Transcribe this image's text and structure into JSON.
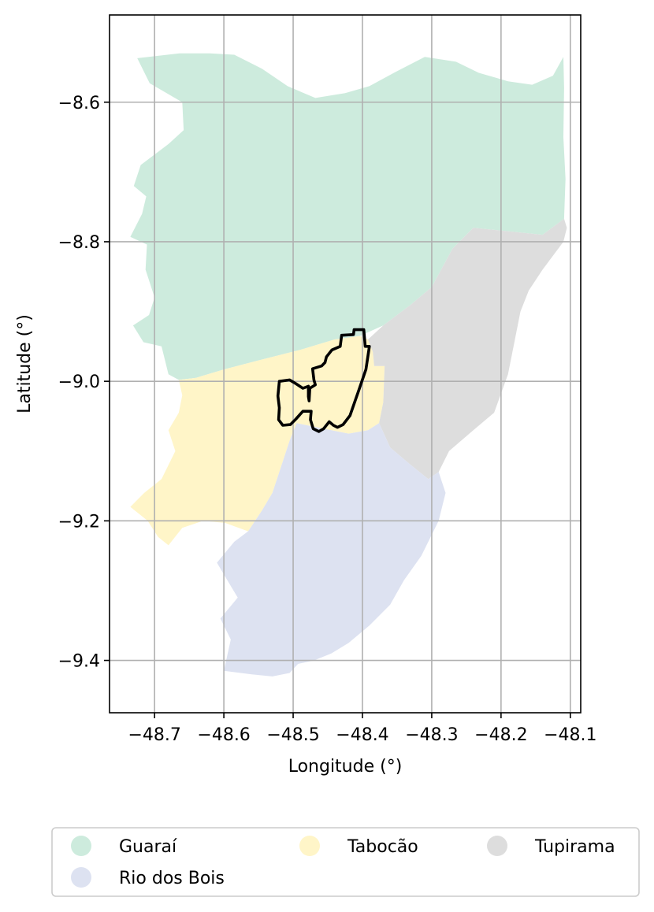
{
  "chart_data": {
    "type": "map",
    "xlabel": "Longitude (°)",
    "ylabel": "Latitude (°)",
    "xlim": [
      -48.765,
      -48.085
    ],
    "ylim": [
      -9.475,
      -8.475
    ],
    "xticks": [
      -48.7,
      -48.6,
      -48.5,
      -48.4,
      -48.3,
      -48.2,
      -48.1
    ],
    "xtick_labels": [
      "−48.7",
      "−48.6",
      "−48.5",
      "−48.4",
      "−48.3",
      "−48.2",
      "−48.1"
    ],
    "yticks": [
      -8.6,
      -8.8,
      -9.0,
      -9.2,
      -9.4
    ],
    "ytick_labels": [
      "−8.6",
      "−8.8",
      "−9.0",
      "−9.2",
      "−9.4"
    ],
    "grid": true,
    "legend_position": "bottom",
    "legend_columns": 3,
    "regions": [
      {
        "name": "Guaraí",
        "color": "#cdebdd",
        "polygon": [
          [
            -48.725,
            -8.537
          ],
          [
            -48.664,
            -8.53
          ],
          [
            -48.62,
            -8.53
          ],
          [
            -48.585,
            -8.532
          ],
          [
            -48.545,
            -8.552
          ],
          [
            -48.508,
            -8.577
          ],
          [
            -48.468,
            -8.594
          ],
          [
            -48.425,
            -8.587
          ],
          [
            -48.39,
            -8.577
          ],
          [
            -48.353,
            -8.557
          ],
          [
            -48.31,
            -8.535
          ],
          [
            -48.265,
            -8.542
          ],
          [
            -48.232,
            -8.558
          ],
          [
            -48.19,
            -8.57
          ],
          [
            -48.155,
            -8.575
          ],
          [
            -48.125,
            -8.562
          ],
          [
            -48.11,
            -8.535
          ],
          [
            -48.109,
            -8.58
          ],
          [
            -48.11,
            -8.65
          ],
          [
            -48.107,
            -8.71
          ],
          [
            -48.109,
            -8.767
          ],
          [
            -48.14,
            -8.79
          ],
          [
            -48.2,
            -8.784
          ],
          [
            -48.24,
            -8.78
          ],
          [
            -48.27,
            -8.81
          ],
          [
            -48.3,
            -8.865
          ],
          [
            -48.33,
            -8.89
          ],
          [
            -48.37,
            -8.92
          ],
          [
            -48.404,
            -8.935
          ],
          [
            -48.44,
            -8.94
          ],
          [
            -48.49,
            -8.955
          ],
          [
            -48.55,
            -8.97
          ],
          [
            -48.6,
            -8.983
          ],
          [
            -48.64,
            -8.995
          ],
          [
            -48.665,
            -8.998
          ],
          [
            -48.68,
            -8.99
          ],
          [
            -48.69,
            -8.95
          ],
          [
            -48.716,
            -8.944
          ],
          [
            -48.731,
            -8.92
          ],
          [
            -48.708,
            -8.905
          ],
          [
            -48.7,
            -8.88
          ],
          [
            -48.713,
            -8.84
          ],
          [
            -48.711,
            -8.804
          ],
          [
            -48.735,
            -8.793
          ],
          [
            -48.718,
            -8.76
          ],
          [
            -48.712,
            -8.735
          ],
          [
            -48.73,
            -8.72
          ],
          [
            -48.72,
            -8.69
          ],
          [
            -48.68,
            -8.66
          ],
          [
            -48.658,
            -8.64
          ],
          [
            -48.66,
            -8.6
          ],
          [
            -48.707,
            -8.573
          ],
          [
            -48.725,
            -8.537
          ]
        ]
      },
      {
        "name": "Tabocão",
        "color": "#fff5c8",
        "polygon": [
          [
            -48.665,
            -8.998
          ],
          [
            -48.64,
            -8.995
          ],
          [
            -48.6,
            -8.983
          ],
          [
            -48.55,
            -8.97
          ],
          [
            -48.49,
            -8.955
          ],
          [
            -48.44,
            -8.94
          ],
          [
            -48.404,
            -8.935
          ],
          [
            -48.392,
            -8.94
          ],
          [
            -48.385,
            -8.958
          ],
          [
            -48.383,
            -8.978
          ],
          [
            -48.368,
            -8.978
          ],
          [
            -48.37,
            -9.03
          ],
          [
            -48.376,
            -9.06
          ],
          [
            -48.392,
            -9.07
          ],
          [
            -48.42,
            -9.075
          ],
          [
            -48.445,
            -9.07
          ],
          [
            -48.47,
            -9.065
          ],
          [
            -48.495,
            -9.06
          ],
          [
            -48.505,
            -9.085
          ],
          [
            -48.52,
            -9.13
          ],
          [
            -48.53,
            -9.16
          ],
          [
            -48.545,
            -9.185
          ],
          [
            -48.565,
            -9.215
          ],
          [
            -48.598,
            -9.203
          ],
          [
            -48.63,
            -9.2
          ],
          [
            -48.66,
            -9.21
          ],
          [
            -48.68,
            -9.235
          ],
          [
            -48.695,
            -9.223
          ],
          [
            -48.71,
            -9.2
          ],
          [
            -48.735,
            -9.18
          ],
          [
            -48.715,
            -9.16
          ],
          [
            -48.69,
            -9.14
          ],
          [
            -48.67,
            -9.1
          ],
          [
            -48.68,
            -9.07
          ],
          [
            -48.665,
            -9.045
          ],
          [
            -48.66,
            -9.02
          ],
          [
            -48.665,
            -8.998
          ]
        ]
      },
      {
        "name": "Tupirama",
        "color": "#dddddd",
        "polygon": [
          [
            -48.109,
            -8.767
          ],
          [
            -48.14,
            -8.79
          ],
          [
            -48.2,
            -8.784
          ],
          [
            -48.24,
            -8.78
          ],
          [
            -48.27,
            -8.81
          ],
          [
            -48.3,
            -8.865
          ],
          [
            -48.33,
            -8.89
          ],
          [
            -48.37,
            -8.92
          ],
          [
            -48.392,
            -8.94
          ],
          [
            -48.385,
            -8.958
          ],
          [
            -48.383,
            -8.978
          ],
          [
            -48.368,
            -8.978
          ],
          [
            -48.37,
            -9.03
          ],
          [
            -48.376,
            -9.06
          ],
          [
            -48.36,
            -9.095
          ],
          [
            -48.33,
            -9.12
          ],
          [
            -48.305,
            -9.14
          ],
          [
            -48.29,
            -9.13
          ],
          [
            -48.275,
            -9.1
          ],
          [
            -48.24,
            -9.07
          ],
          [
            -48.21,
            -9.045
          ],
          [
            -48.19,
            -8.99
          ],
          [
            -48.18,
            -8.94
          ],
          [
            -48.172,
            -8.9
          ],
          [
            -48.16,
            -8.87
          ],
          [
            -48.14,
            -8.84
          ],
          [
            -48.11,
            -8.8
          ],
          [
            -48.105,
            -8.78
          ],
          [
            -48.109,
            -8.767
          ]
        ]
      },
      {
        "name": "Rio dos Bois",
        "color": "#dde2f1",
        "polygon": [
          [
            -48.495,
            -9.06
          ],
          [
            -48.47,
            -9.065
          ],
          [
            -48.445,
            -9.07
          ],
          [
            -48.42,
            -9.075
          ],
          [
            -48.392,
            -9.07
          ],
          [
            -48.376,
            -9.06
          ],
          [
            -48.36,
            -9.095
          ],
          [
            -48.33,
            -9.12
          ],
          [
            -48.305,
            -9.14
          ],
          [
            -48.29,
            -9.13
          ],
          [
            -48.28,
            -9.16
          ],
          [
            -48.29,
            -9.2
          ],
          [
            -48.315,
            -9.25
          ],
          [
            -48.34,
            -9.285
          ],
          [
            -48.36,
            -9.32
          ],
          [
            -48.39,
            -9.35
          ],
          [
            -48.42,
            -9.375
          ],
          [
            -48.445,
            -9.39
          ],
          [
            -48.47,
            -9.4
          ],
          [
            -48.493,
            -9.405
          ],
          [
            -48.505,
            -9.418
          ],
          [
            -48.53,
            -9.423
          ],
          [
            -48.56,
            -9.42
          ],
          [
            -48.6,
            -9.415
          ],
          [
            -48.59,
            -9.37
          ],
          [
            -48.605,
            -9.34
          ],
          [
            -48.58,
            -9.31
          ],
          [
            -48.595,
            -9.285
          ],
          [
            -48.61,
            -9.26
          ],
          [
            -48.585,
            -9.23
          ],
          [
            -48.565,
            -9.215
          ],
          [
            -48.545,
            -9.185
          ],
          [
            -48.53,
            -9.16
          ],
          [
            -48.52,
            -9.13
          ],
          [
            -48.505,
            -9.085
          ],
          [
            -48.495,
            -9.06
          ]
        ]
      }
    ],
    "outline": {
      "color": "#000000",
      "points": [
        [
          -48.412,
          -8.926
        ],
        [
          -48.398,
          -8.926
        ],
        [
          -48.396,
          -8.95
        ],
        [
          -48.39,
          -8.95
        ],
        [
          -48.395,
          -8.983
        ],
        [
          -48.406,
          -9.015
        ],
        [
          -48.418,
          -9.049
        ],
        [
          -48.428,
          -9.062
        ],
        [
          -48.436,
          -9.066
        ],
        [
          -48.442,
          -9.063
        ],
        [
          -48.448,
          -9.058
        ],
        [
          -48.456,
          -9.068
        ],
        [
          -48.463,
          -9.072
        ],
        [
          -48.471,
          -9.068
        ],
        [
          -48.475,
          -9.055
        ],
        [
          -48.474,
          -9.043
        ],
        [
          -48.486,
          -9.043
        ],
        [
          -48.496,
          -9.054
        ],
        [
          -48.504,
          -9.062
        ],
        [
          -48.515,
          -9.063
        ],
        [
          -48.521,
          -9.055
        ],
        [
          -48.52,
          -9.038
        ],
        [
          -48.522,
          -9.021
        ],
        [
          -48.52,
          -9.0
        ],
        [
          -48.505,
          -8.998
        ],
        [
          -48.495,
          -9.004
        ],
        [
          -48.486,
          -9.01
        ],
        [
          -48.478,
          -9.007
        ],
        [
          -48.478,
          -9.022
        ],
        [
          -48.477,
          -9.028
        ],
        [
          -48.476,
          -9.01
        ],
        [
          -48.468,
          -9.005
        ],
        [
          -48.47,
          -8.998
        ],
        [
          -48.472,
          -8.982
        ],
        [
          -48.459,
          -8.978
        ],
        [
          -48.454,
          -8.973
        ],
        [
          -48.452,
          -8.965
        ],
        [
          -48.444,
          -8.955
        ],
        [
          -48.432,
          -8.95
        ],
        [
          -48.43,
          -8.934
        ],
        [
          -48.413,
          -8.933
        ],
        [
          -48.412,
          -8.926
        ]
      ]
    },
    "legend": [
      {
        "label": "Guaraí",
        "color": "#cdebdd"
      },
      {
        "label": "Tabocão",
        "color": "#fff5c8"
      },
      {
        "label": "Tupirama",
        "color": "#dddddd"
      },
      {
        "label": "Rio dos Bois",
        "color": "#dde2f1"
      }
    ]
  }
}
